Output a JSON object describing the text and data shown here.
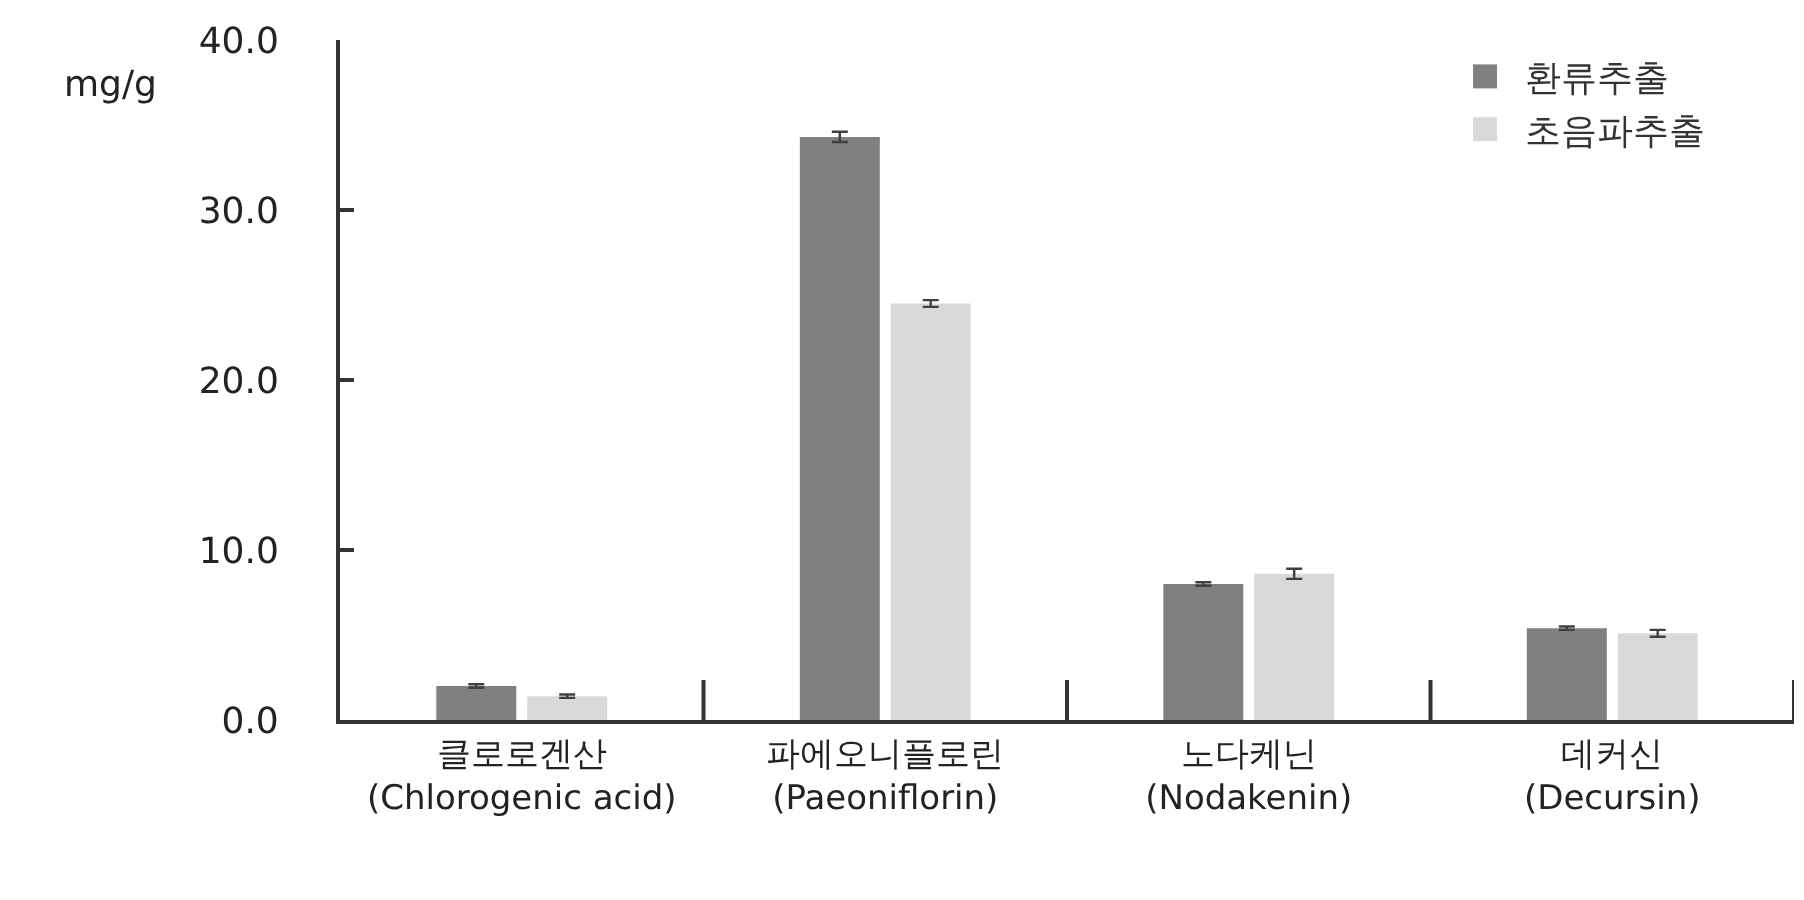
{
  "chart_data": {
    "type": "bar",
    "ylabel": "mg/g",
    "categories": [
      "클로로겐산\n(Chlorogenic acid)",
      "파에오니플로린\n(Paeoniflorin)",
      "노다케닌\n(Nodakenin)",
      "데커신\n(Decursin)"
    ],
    "series": [
      {
        "name": "환류추출",
        "color": "#808080",
        "values": [
          2.0,
          34.3,
          8.0,
          5.4
        ],
        "errors": [
          0.1,
          0.3,
          0.1,
          0.1
        ]
      },
      {
        "name": "초음파추출",
        "color": "#d9d9d9",
        "values": [
          1.4,
          24.5,
          8.6,
          5.1
        ],
        "errors": [
          0.1,
          0.2,
          0.3,
          0.2
        ]
      }
    ],
    "ylim": [
      0,
      40
    ],
    "yticks": [
      {
        "value": 0,
        "label": "0.0"
      },
      {
        "value": 10,
        "label": "10.0"
      },
      {
        "value": 20,
        "label": "20.0"
      },
      {
        "value": 30,
        "label": "30.0"
      },
      {
        "value": 40,
        "label": "40.0"
      }
    ],
    "legend": "top right"
  }
}
